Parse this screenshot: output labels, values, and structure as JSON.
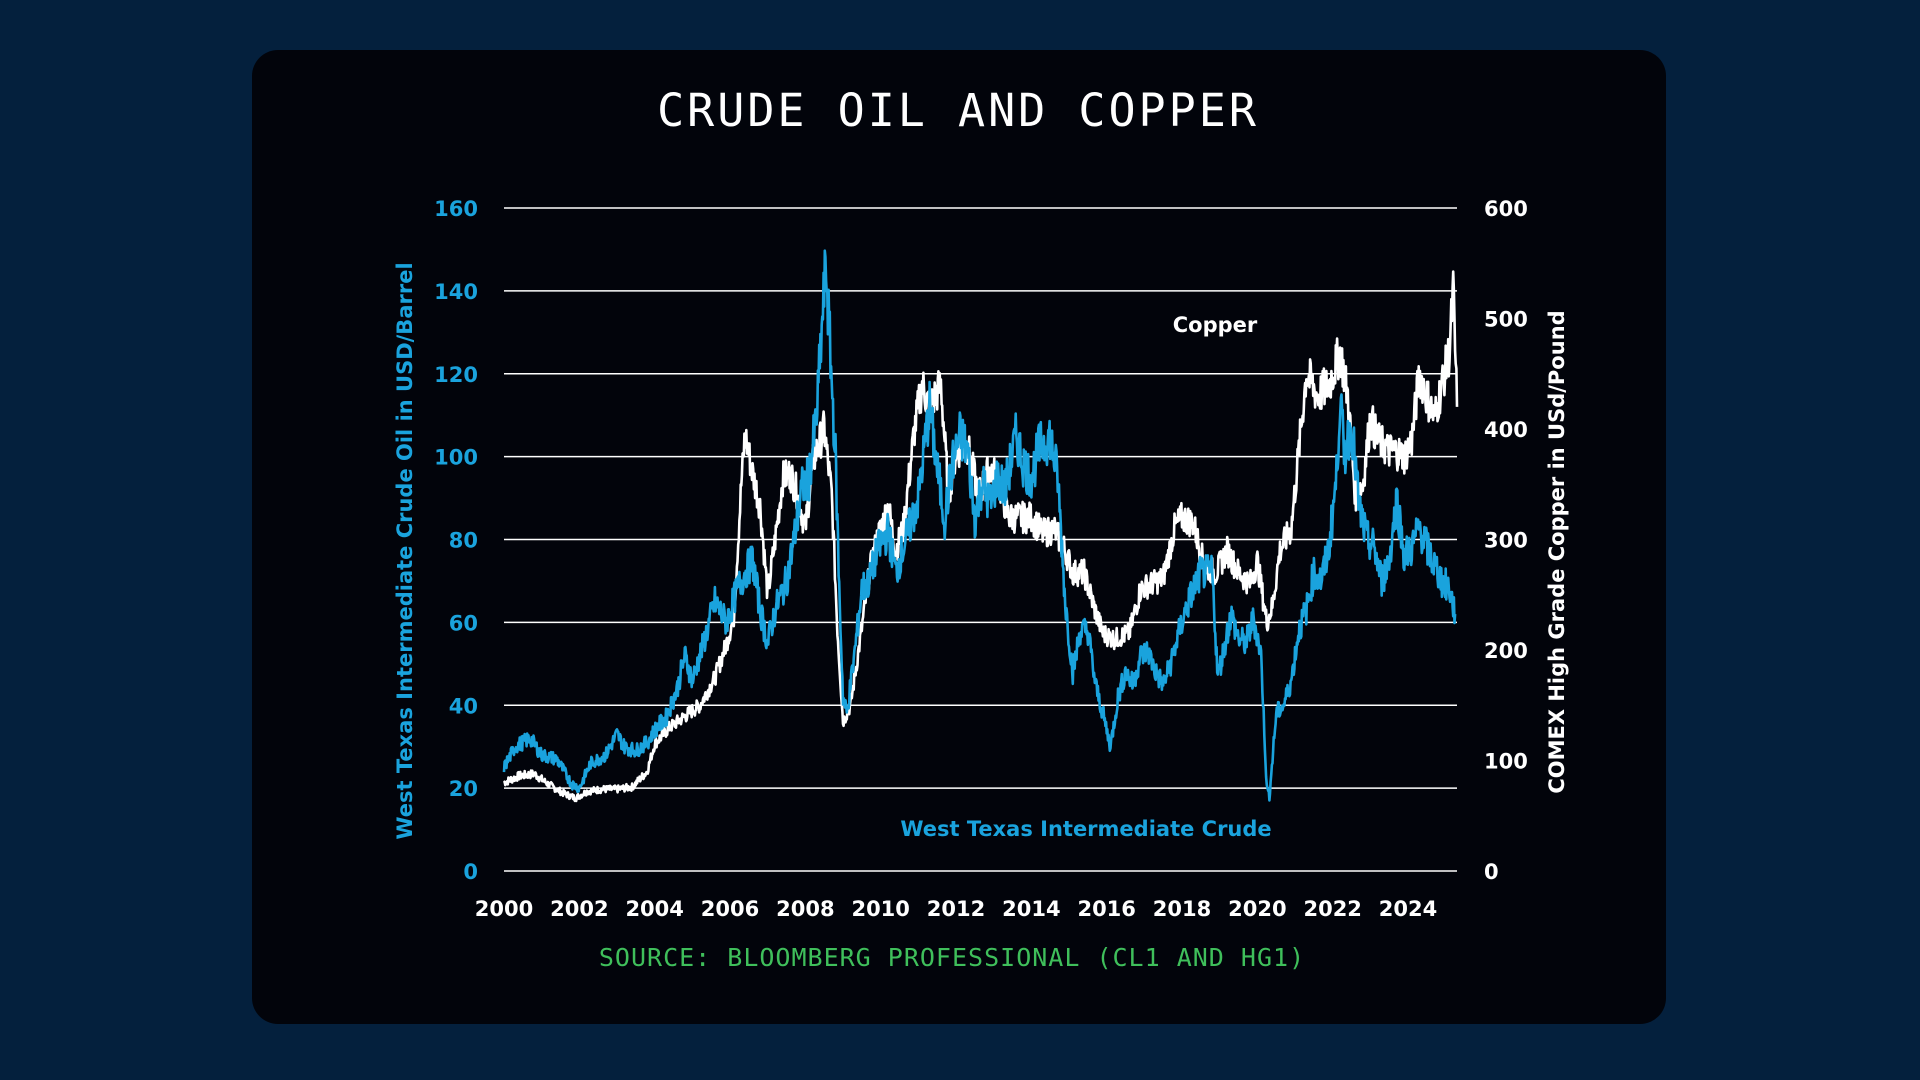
{
  "chart_data": {
    "type": "line",
    "title": "CRUDE OIL AND COPPER",
    "source": "SOURCE: BLOOMBERG PROFESSIONAL (CL1 AND HG1)",
    "ylabel_left": "West Texas Intermediate Crude Oil in USD/Barrel",
    "ylabel_right": "COMEX High Grade Copper in USd/Pound",
    "xlabel": "",
    "x_ticks": [
      "2000",
      "2002",
      "2004",
      "2006",
      "2008",
      "2010",
      "2012",
      "2014",
      "2016",
      "2018",
      "2020",
      "2022",
      "2024"
    ],
    "xlim": [
      2000,
      2025.3
    ],
    "ylim_left": [
      0,
      160
    ],
    "ylim_right": [
      0,
      600
    ],
    "y_ticks_left": [
      "0",
      "20",
      "40",
      "60",
      "80",
      "100",
      "120",
      "140",
      "160"
    ],
    "y_ticks_right": [
      "0",
      "100",
      "200",
      "300",
      "400",
      "500",
      "600"
    ],
    "grid": true,
    "colors": {
      "oil": "#1aa3dd",
      "copper": "#ffffff",
      "grid": "#ffffff",
      "source": "#3fbf5b"
    },
    "series": [
      {
        "name": "West Texas Intermediate Crude",
        "axis": "left",
        "points": [
          [
            2000.0,
            25
          ],
          [
            2000.3,
            30
          ],
          [
            2000.7,
            32
          ],
          [
            2001.0,
            28
          ],
          [
            2001.4,
            27
          ],
          [
            2001.8,
            21
          ],
          [
            2002.0,
            20
          ],
          [
            2002.3,
            26
          ],
          [
            2002.7,
            28
          ],
          [
            2003.0,
            33
          ],
          [
            2003.2,
            30
          ],
          [
            2003.5,
            29
          ],
          [
            2003.8,
            31
          ],
          [
            2004.0,
            34
          ],
          [
            2004.3,
            37
          ],
          [
            2004.6,
            44
          ],
          [
            2004.8,
            52
          ],
          [
            2005.0,
            46
          ],
          [
            2005.3,
            55
          ],
          [
            2005.6,
            65
          ],
          [
            2005.9,
            60
          ],
          [
            2006.2,
            68
          ],
          [
            2006.4,
            72
          ],
          [
            2006.6,
            75
          ],
          [
            2006.8,
            63
          ],
          [
            2007.0,
            55
          ],
          [
            2007.2,
            63
          ],
          [
            2007.5,
            70
          ],
          [
            2007.7,
            80
          ],
          [
            2007.9,
            92
          ],
          [
            2008.1,
            95
          ],
          [
            2008.3,
            110
          ],
          [
            2008.5,
            140
          ],
          [
            2008.55,
            146
          ],
          [
            2008.7,
            118
          ],
          [
            2008.8,
            100
          ],
          [
            2008.9,
            68
          ],
          [
            2009.0,
            42
          ],
          [
            2009.1,
            38
          ],
          [
            2009.3,
            52
          ],
          [
            2009.5,
            68
          ],
          [
            2009.7,
            70
          ],
          [
            2009.9,
            77
          ],
          [
            2010.2,
            82
          ],
          [
            2010.4,
            72
          ],
          [
            2010.6,
            78
          ],
          [
            2010.8,
            84
          ],
          [
            2011.0,
            90
          ],
          [
            2011.2,
            105
          ],
          [
            2011.3,
            112
          ],
          [
            2011.5,
            97
          ],
          [
            2011.7,
            85
          ],
          [
            2011.9,
            98
          ],
          [
            2012.1,
            105
          ],
          [
            2012.3,
            102
          ],
          [
            2012.5,
            85
          ],
          [
            2012.7,
            94
          ],
          [
            2012.9,
            88
          ],
          [
            2013.1,
            95
          ],
          [
            2013.3,
            92
          ],
          [
            2013.6,
            105
          ],
          [
            2013.8,
            98
          ],
          [
            2014.0,
            95
          ],
          [
            2014.2,
            102
          ],
          [
            2014.5,
            105
          ],
          [
            2014.7,
            95
          ],
          [
            2014.9,
            65
          ],
          [
            2015.1,
            48
          ],
          [
            2015.3,
            58
          ],
          [
            2015.5,
            58
          ],
          [
            2015.7,
            45
          ],
          [
            2015.9,
            38
          ],
          [
            2016.1,
            30
          ],
          [
            2016.3,
            42
          ],
          [
            2016.5,
            48
          ],
          [
            2016.7,
            45
          ],
          [
            2016.9,
            52
          ],
          [
            2017.1,
            53
          ],
          [
            2017.3,
            48
          ],
          [
            2017.5,
            45
          ],
          [
            2017.7,
            50
          ],
          [
            2017.9,
            57
          ],
          [
            2018.1,
            63
          ],
          [
            2018.3,
            68
          ],
          [
            2018.5,
            72
          ],
          [
            2018.8,
            72
          ],
          [
            2018.95,
            47
          ],
          [
            2019.1,
            53
          ],
          [
            2019.3,
            62
          ],
          [
            2019.5,
            56
          ],
          [
            2019.7,
            55
          ],
          [
            2019.9,
            61
          ],
          [
            2020.1,
            52
          ],
          [
            2020.25,
            20
          ],
          [
            2020.32,
            18
          ],
          [
            2020.5,
            38
          ],
          [
            2020.7,
            40
          ],
          [
            2020.9,
            46
          ],
          [
            2021.1,
            58
          ],
          [
            2021.3,
            63
          ],
          [
            2021.5,
            72
          ],
          [
            2021.7,
            70
          ],
          [
            2021.9,
            78
          ],
          [
            2022.1,
            95
          ],
          [
            2022.2,
            115
          ],
          [
            2022.3,
            100
          ],
          [
            2022.5,
            108
          ],
          [
            2022.7,
            88
          ],
          [
            2022.9,
            80
          ],
          [
            2023.1,
            78
          ],
          [
            2023.3,
            70
          ],
          [
            2023.5,
            75
          ],
          [
            2023.7,
            90
          ],
          [
            2023.9,
            76
          ],
          [
            2024.1,
            78
          ],
          [
            2024.3,
            83
          ],
          [
            2024.5,
            78
          ],
          [
            2024.7,
            74
          ],
          [
            2024.9,
            70
          ],
          [
            2025.1,
            68
          ],
          [
            2025.25,
            62
          ]
        ]
      },
      {
        "name": "Copper",
        "axis": "right",
        "points": [
          [
            2000.0,
            80
          ],
          [
            2000.4,
            86
          ],
          [
            2000.8,
            88
          ],
          [
            2001.2,
            78
          ],
          [
            2001.6,
            70
          ],
          [
            2001.9,
            66
          ],
          [
            2002.2,
            72
          ],
          [
            2002.6,
            74
          ],
          [
            2003.0,
            74
          ],
          [
            2003.4,
            76
          ],
          [
            2003.8,
            90
          ],
          [
            2004.0,
            115
          ],
          [
            2004.4,
            130
          ],
          [
            2004.8,
            140
          ],
          [
            2005.2,
            150
          ],
          [
            2005.6,
            175
          ],
          [
            2005.9,
            205
          ],
          [
            2006.1,
            230
          ],
          [
            2006.3,
            350
          ],
          [
            2006.4,
            395
          ],
          [
            2006.6,
            360
          ],
          [
            2006.8,
            330
          ],
          [
            2007.0,
            250
          ],
          [
            2007.2,
            300
          ],
          [
            2007.4,
            355
          ],
          [
            2007.6,
            360
          ],
          [
            2007.8,
            340
          ],
          [
            2008.0,
            310
          ],
          [
            2008.2,
            370
          ],
          [
            2008.5,
            400
          ],
          [
            2008.7,
            340
          ],
          [
            2008.85,
            220
          ],
          [
            2009.0,
            135
          ],
          [
            2009.2,
            150
          ],
          [
            2009.5,
            220
          ],
          [
            2009.7,
            270
          ],
          [
            2009.9,
            300
          ],
          [
            2010.2,
            330
          ],
          [
            2010.4,
            290
          ],
          [
            2010.6,
            310
          ],
          [
            2010.9,
            400
          ],
          [
            2011.1,
            440
          ],
          [
            2011.3,
            420
          ],
          [
            2011.6,
            440
          ],
          [
            2011.8,
            340
          ],
          [
            2012.0,
            380
          ],
          [
            2012.3,
            385
          ],
          [
            2012.6,
            340
          ],
          [
            2012.9,
            365
          ],
          [
            2013.1,
            355
          ],
          [
            2013.4,
            320
          ],
          [
            2013.7,
            320
          ],
          [
            2014.0,
            320
          ],
          [
            2014.3,
            305
          ],
          [
            2014.6,
            310
          ],
          [
            2014.9,
            290
          ],
          [
            2015.1,
            270
          ],
          [
            2015.4,
            270
          ],
          [
            2015.7,
            235
          ],
          [
            2015.9,
            215
          ],
          [
            2016.2,
            210
          ],
          [
            2016.6,
            215
          ],
          [
            2016.9,
            255
          ],
          [
            2017.2,
            260
          ],
          [
            2017.5,
            265
          ],
          [
            2017.8,
            310
          ],
          [
            2018.0,
            320
          ],
          [
            2018.3,
            315
          ],
          [
            2018.6,
            275
          ],
          [
            2018.9,
            270
          ],
          [
            2019.2,
            290
          ],
          [
            2019.5,
            270
          ],
          [
            2019.8,
            260
          ],
          [
            2020.0,
            280
          ],
          [
            2020.25,
            225
          ],
          [
            2020.4,
            240
          ],
          [
            2020.6,
            290
          ],
          [
            2020.9,
            310
          ],
          [
            2021.1,
            380
          ],
          [
            2021.3,
            450
          ],
          [
            2021.6,
            430
          ],
          [
            2021.9,
            440
          ],
          [
            2022.2,
            470
          ],
          [
            2022.4,
            430
          ],
          [
            2022.6,
            340
          ],
          [
            2022.8,
            350
          ],
          [
            2023.0,
            410
          ],
          [
            2023.2,
            390
          ],
          [
            2023.5,
            380
          ],
          [
            2023.7,
            380
          ],
          [
            2023.9,
            375
          ],
          [
            2024.1,
            390
          ],
          [
            2024.3,
            450
          ],
          [
            2024.5,
            430
          ],
          [
            2024.7,
            410
          ],
          [
            2024.9,
            440
          ],
          [
            2025.1,
            470
          ],
          [
            2025.2,
            525
          ],
          [
            2025.3,
            420
          ]
        ]
      }
    ]
  }
}
